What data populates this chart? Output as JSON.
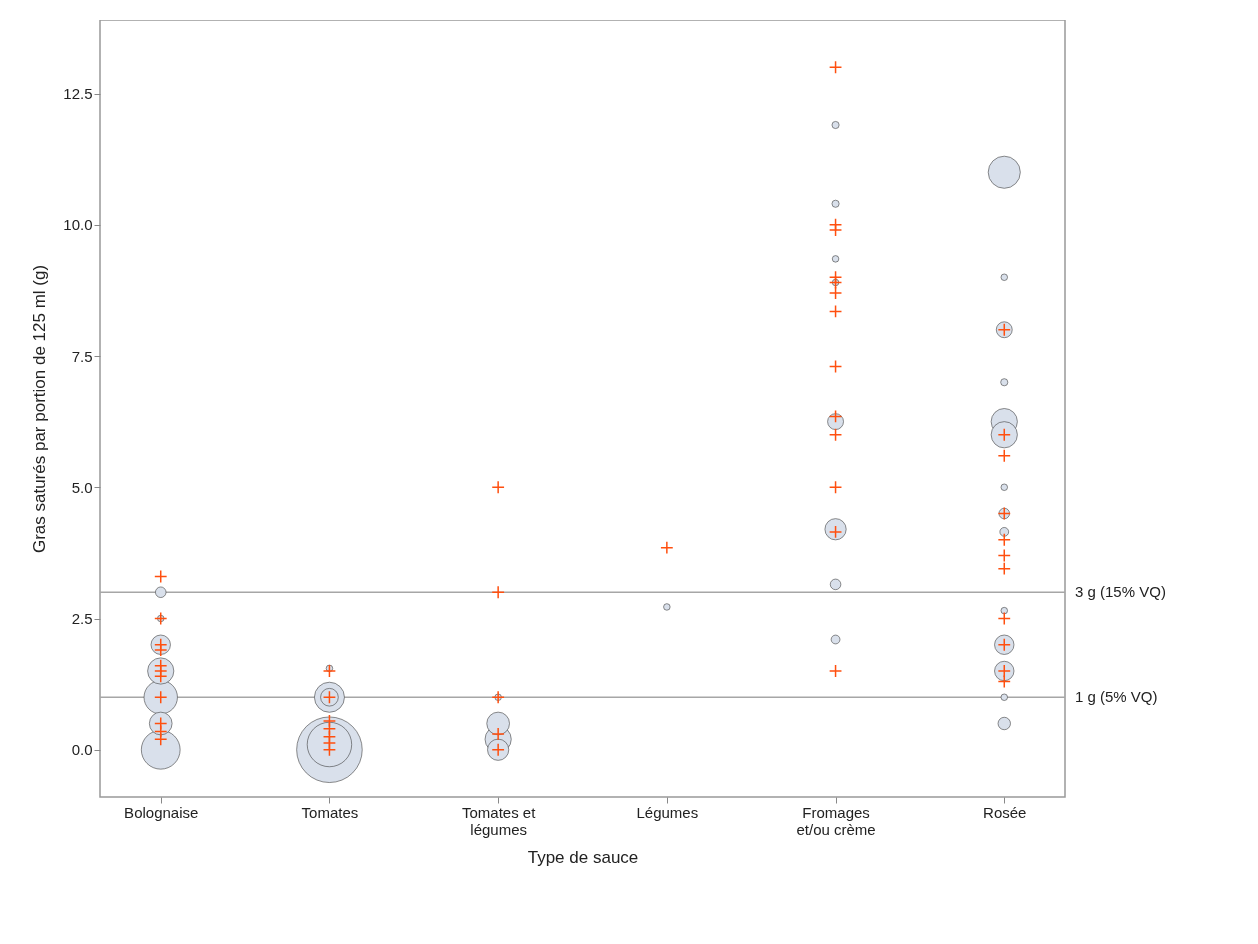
{
  "chart_data": {
    "type": "bubble",
    "xlabel": "Type de sauce",
    "ylabel": "Gras saturés par portion de 125 ml (g)",
    "categories": [
      "Bolognaise",
      "Tomates",
      "Tomates et légumes",
      "Légumes",
      "Fromages et/ou crème",
      "Rosée"
    ],
    "ylim": [
      -0.9,
      13.9
    ],
    "yticks": [
      {
        "value": 0,
        "label": "0.0"
      },
      2.5,
      {
        "value": 5,
        "label": "5.0"
      },
      7.5,
      {
        "value": 10,
        "label": "10.0"
      },
      12.5
    ],
    "grid": false,
    "ref_lines": [
      {
        "axis": "y",
        "value": 3,
        "label": "3 g (15% VQ)",
        "color": "#a6a6a6"
      },
      {
        "axis": "y",
        "value": 1,
        "label": "1 g (5% VQ)",
        "color": "#a6a6a6"
      }
    ],
    "series": [
      {
        "type": "bubble",
        "color": "#d9e0eb",
        "x": [
          "Bolognaise",
          "Bolognaise",
          "Bolognaise",
          "Bolognaise",
          "Bolognaise",
          "Bolognaise",
          "Bolognaise",
          "Tomates",
          "Tomates",
          "Tomates",
          "Tomates",
          "Tomates",
          "Tomates et légumes",
          "Tomates et légumes",
          "Tomates et légumes",
          "Tomates et légumes",
          "Légumes",
          "Fromages et/ou crème",
          "Fromages et/ou crème",
          "Fromages et/ou crème",
          "Fromages et/ou crème",
          "Fromages et/ou crème",
          "Fromages et/ou crème",
          "Fromages et/ou crème",
          "Fromages et/ou crème",
          "Rosée",
          "Rosée",
          "Rosée",
          "Rosée",
          "Rosée",
          "Rosée",
          "Rosée",
          "Rosée",
          "Rosée",
          "Rosée",
          "Rosée",
          "Rosée",
          "Rosée",
          "Rosée"
        ],
        "values": [
          3.0,
          2.5,
          2.0,
          1.5,
          1.0,
          0.5,
          0.0,
          0.0,
          0.1,
          1.0,
          1.0,
          1.55,
          0.5,
          0.2,
          0.0,
          1.0,
          2.72,
          11.9,
          10.4,
          9.35,
          8.9,
          6.25,
          4.2,
          3.15,
          2.1,
          11.0,
          9.0,
          8.0,
          7.0,
          6.25,
          6.0,
          5.0,
          4.5,
          4.15,
          2.65,
          2.0,
          1.5,
          1.0,
          0.5
        ],
        "sizes": [
          0.026,
          0.01,
          0.088,
          0.16,
          0.26,
          0.12,
          0.35,
          1,
          0.46,
          0.21,
          0.073,
          0.01,
          0.12,
          0.16,
          0.105,
          0.01,
          0.01,
          0.012,
          0.012,
          0.01,
          0.01,
          0.059,
          0.105,
          0.026,
          0.018,
          0.24,
          0.01,
          0.059,
          0.012,
          0.16,
          0.16,
          0.01,
          0.026,
          0.018,
          0.01,
          0.088,
          0.088,
          0.01,
          0.036
        ]
      },
      {
        "type": "scatter",
        "marker": "cross",
        "color": "#ff4f0f",
        "x": [
          "Bolognaise",
          "Bolognaise",
          "Bolognaise",
          "Bolognaise",
          "Bolognaise",
          "Bolognaise",
          "Bolognaise",
          "Bolognaise",
          "Bolognaise",
          "Bolognaise",
          "Bolognaise",
          "Tomates",
          "Tomates",
          "Tomates",
          "Tomates",
          "Tomates",
          "Tomates",
          "Tomates",
          "Tomates et légumes",
          "Tomates et légumes",
          "Tomates et légumes",
          "Tomates et légumes",
          "Tomates et légumes",
          "Légumes",
          "Fromages et/ou crème",
          "Fromages et/ou crème",
          "Fromages et/ou crème",
          "Fromages et/ou crème",
          "Fromages et/ou crème",
          "Fromages et/ou crème",
          "Fromages et/ou crème",
          "Fromages et/ou crème",
          "Fromages et/ou crème",
          "Fromages et/ou crème",
          "Fromages et/ou crème",
          "Fromages et/ou crème",
          "Fromages et/ou crème",
          "Rosée",
          "Rosée",
          "Rosée",
          "Rosée",
          "Rosée",
          "Rosée",
          "Rosée",
          "Rosée",
          "Rosée",
          "Rosée",
          "Rosée"
        ],
        "values": [
          3.3,
          2.5,
          2.0,
          1.9,
          1.6,
          1.5,
          1.4,
          1.0,
          0.5,
          0.35,
          0.2,
          1.5,
          1.0,
          0.55,
          0.4,
          0.25,
          0.13,
          0.0,
          5.0,
          3.0,
          1.0,
          0.3,
          0.0,
          3.85,
          13.0,
          10.0,
          9.9,
          9.0,
          8.9,
          8.7,
          8.35,
          7.3,
          6.35,
          6.0,
          5.0,
          4.15,
          1.5,
          8.0,
          6.0,
          5.6,
          4.5,
          4.0,
          3.7,
          3.45,
          2.5,
          2.0,
          1.5,
          1.3
        ]
      }
    ]
  }
}
